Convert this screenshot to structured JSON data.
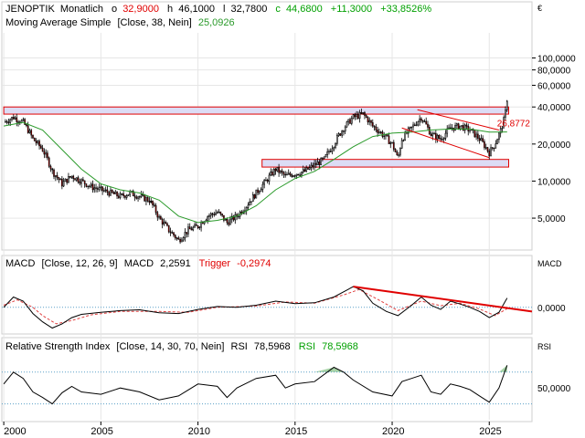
{
  "header": {
    "symbol": "JENOPTIK",
    "interval": "Monatlich",
    "open_label": "o",
    "open": "32,9000",
    "high_label": "h",
    "high": "46,1000",
    "low_label": "l",
    "low": "32,7800",
    "close_label": "c",
    "close": "44,6800",
    "change": "+11,3000",
    "change_pct": "+33,8526%",
    "currency": "€",
    "ma_label": "Moving Average Simple",
    "ma_params": "[Close, 38, Nein]",
    "ma_value": "25,0926",
    "last_ma_marker": "26,8772"
  },
  "macd": {
    "label": "MACD",
    "params": "[Close, 12, 26, 9]",
    "value_label": "MACD",
    "value": "2,2591",
    "trigger_label": "Trigger",
    "trigger_value": "-0,2974",
    "axis_label": "MACD",
    "zero_tick": "0,0000"
  },
  "rsi": {
    "label": "Relative Strength Index",
    "params": "[Close, 14, 30, 70, Nein]",
    "value_label": "RSI",
    "value": "78,5968",
    "value2_label": "RSI",
    "value2": "78,5968",
    "axis_label": "RSI",
    "mid_tick": "50,0000"
  },
  "colors": {
    "candle_up": "#ffffff",
    "candle_down": "#cc0000",
    "ma_line": "#2a9a2a",
    "trend_line": "#e00000",
    "band_fill": "#dcdcf5",
    "grid": "#e6e6e6",
    "macd_line": "#000000",
    "macd_trigger": "#e04040",
    "rsi_fill": "#7fbf7f",
    "positive": "#00a000",
    "negative": "#e00000"
  },
  "chart_data": [
    {
      "type": "candlestick",
      "title": "JENOPTIK Monatlich",
      "scale": "log",
      "yticks": [
        "5,0000",
        "10,0000",
        "20,0000",
        "40,0000",
        "60,0000",
        "80,0000",
        "100,0000"
      ],
      "ytick_values": [
        5,
        10,
        20,
        40,
        60,
        80,
        100
      ],
      "xticks": [
        "2000",
        "2005",
        "2010",
        "2015",
        "2020",
        "2025"
      ],
      "xtick_values": [
        2000,
        2005,
        2010,
        2015,
        2020,
        2025
      ],
      "xlim": [
        1999.9,
        2027.2
      ],
      "ylim": [
        2.85,
        160
      ],
      "close_points": [
        {
          "x": 2000.0,
          "y": 30
        },
        {
          "x": 2000.5,
          "y": 33
        },
        {
          "x": 2001.0,
          "y": 30
        },
        {
          "x": 2001.5,
          "y": 22
        },
        {
          "x": 2002.0,
          "y": 18
        },
        {
          "x": 2002.5,
          "y": 12
        },
        {
          "x": 2003.0,
          "y": 9.5
        },
        {
          "x": 2003.5,
          "y": 11
        },
        {
          "x": 2004.0,
          "y": 10
        },
        {
          "x": 2004.5,
          "y": 9
        },
        {
          "x": 2005.0,
          "y": 8.5
        },
        {
          "x": 2005.5,
          "y": 8
        },
        {
          "x": 2006.0,
          "y": 7.5
        },
        {
          "x": 2006.5,
          "y": 8
        },
        {
          "x": 2007.0,
          "y": 7.5
        },
        {
          "x": 2007.5,
          "y": 7
        },
        {
          "x": 2008.0,
          "y": 5
        },
        {
          "x": 2008.5,
          "y": 4
        },
        {
          "x": 2009.0,
          "y": 3.3
        },
        {
          "x": 2009.5,
          "y": 4
        },
        {
          "x": 2010.0,
          "y": 4.3
        },
        {
          "x": 2010.5,
          "y": 5.2
        },
        {
          "x": 2011.0,
          "y": 5.6
        },
        {
          "x": 2011.5,
          "y": 4.6
        },
        {
          "x": 2012.0,
          "y": 5.2
        },
        {
          "x": 2012.5,
          "y": 6.3
        },
        {
          "x": 2013.0,
          "y": 8
        },
        {
          "x": 2013.5,
          "y": 10
        },
        {
          "x": 2014.0,
          "y": 12.5
        },
        {
          "x": 2014.5,
          "y": 11
        },
        {
          "x": 2015.0,
          "y": 11.5
        },
        {
          "x": 2015.5,
          "y": 12
        },
        {
          "x": 2016.0,
          "y": 13.5
        },
        {
          "x": 2016.5,
          "y": 15
        },
        {
          "x": 2017.0,
          "y": 20
        },
        {
          "x": 2017.5,
          "y": 27
        },
        {
          "x": 2018.0,
          "y": 33
        },
        {
          "x": 2018.5,
          "y": 35
        },
        {
          "x": 2019.0,
          "y": 28
        },
        {
          "x": 2019.5,
          "y": 24
        },
        {
          "x": 2020.0,
          "y": 20
        },
        {
          "x": 2020.3,
          "y": 15
        },
        {
          "x": 2020.5,
          "y": 22
        },
        {
          "x": 2021.0,
          "y": 27
        },
        {
          "x": 2021.5,
          "y": 33
        },
        {
          "x": 2022.0,
          "y": 24
        },
        {
          "x": 2022.5,
          "y": 22
        },
        {
          "x": 2023.0,
          "y": 27
        },
        {
          "x": 2023.5,
          "y": 28
        },
        {
          "x": 2024.0,
          "y": 26
        },
        {
          "x": 2024.5,
          "y": 22
        },
        {
          "x": 2025.0,
          "y": 17
        },
        {
          "x": 2025.3,
          "y": 20
        },
        {
          "x": 2025.6,
          "y": 26
        },
        {
          "x": 2025.8,
          "y": 33
        },
        {
          "x": 2025.92,
          "y": 44.68
        }
      ],
      "ma_points": [
        {
          "x": 2000.0,
          "y": 28
        },
        {
          "x": 2001.0,
          "y": 30
        },
        {
          "x": 2002.0,
          "y": 26
        },
        {
          "x": 2003.0,
          "y": 18
        },
        {
          "x": 2004.0,
          "y": 12.5
        },
        {
          "x": 2005.0,
          "y": 9.5
        },
        {
          "x": 2006.0,
          "y": 8.5
        },
        {
          "x": 2007.0,
          "y": 8
        },
        {
          "x": 2008.0,
          "y": 7
        },
        {
          "x": 2009.0,
          "y": 5.2
        },
        {
          "x": 2010.0,
          "y": 4.6
        },
        {
          "x": 2011.0,
          "y": 4.8
        },
        {
          "x": 2012.0,
          "y": 5.2
        },
        {
          "x": 2013.0,
          "y": 6.3
        },
        {
          "x": 2014.0,
          "y": 8.5
        },
        {
          "x": 2015.0,
          "y": 10.5
        },
        {
          "x": 2016.0,
          "y": 12
        },
        {
          "x": 2017.0,
          "y": 15
        },
        {
          "x": 2018.0,
          "y": 19
        },
        {
          "x": 2019.0,
          "y": 23
        },
        {
          "x": 2020.0,
          "y": 24.5
        },
        {
          "x": 2021.0,
          "y": 25
        },
        {
          "x": 2022.0,
          "y": 26
        },
        {
          "x": 2023.0,
          "y": 26.5
        },
        {
          "x": 2024.0,
          "y": 26.5
        },
        {
          "x": 2025.0,
          "y": 25
        },
        {
          "x": 2025.92,
          "y": 25.09
        }
      ],
      "resistance_band": {
        "x_from": 2000.0,
        "x_to": 2026.0,
        "y_low": 35,
        "y_high": 40
      },
      "support_band": {
        "x_from": 2013.3,
        "x_to": 2026.0,
        "y_low": 13,
        "y_high": 15
      },
      "channel_lines": [
        {
          "x1": 2021.3,
          "y1": 38,
          "x2": 2025.5,
          "y2": 26
        },
        {
          "x1": 2020.5,
          "y1": 27,
          "x2": 2025.0,
          "y2": 15.5
        }
      ]
    },
    {
      "type": "line",
      "title": "MACD [Close, 12, 26, 9]",
      "yticks": [
        "0,0000"
      ],
      "ylim": [
        -6,
        9
      ],
      "macd_points": [
        {
          "x": 2000.0,
          "y": 0
        },
        {
          "x": 2000.5,
          "y": 2.5
        },
        {
          "x": 2001.0,
          "y": 1.5
        },
        {
          "x": 2001.5,
          "y": -1.5
        },
        {
          "x": 2002.0,
          "y": -3.5
        },
        {
          "x": 2002.5,
          "y": -5
        },
        {
          "x": 2003.0,
          "y": -4
        },
        {
          "x": 2003.5,
          "y": -2.5
        },
        {
          "x": 2004.0,
          "y": -1.7
        },
        {
          "x": 2005.0,
          "y": -1.2
        },
        {
          "x": 2006.0,
          "y": -0.8
        },
        {
          "x": 2007.0,
          "y": -0.6
        },
        {
          "x": 2008.0,
          "y": -1.3
        },
        {
          "x": 2009.0,
          "y": -1.5
        },
        {
          "x": 2010.0,
          "y": -0.5
        },
        {
          "x": 2011.0,
          "y": 0.2
        },
        {
          "x": 2012.0,
          "y": 0
        },
        {
          "x": 2013.0,
          "y": 0.5
        },
        {
          "x": 2014.0,
          "y": 1.5
        },
        {
          "x": 2015.0,
          "y": 0.9
        },
        {
          "x": 2016.0,
          "y": 1.1
        },
        {
          "x": 2017.0,
          "y": 2.5
        },
        {
          "x": 2018.0,
          "y": 5
        },
        {
          "x": 2018.5,
          "y": 4
        },
        {
          "x": 2019.0,
          "y": 1
        },
        {
          "x": 2019.7,
          "y": -1
        },
        {
          "x": 2020.3,
          "y": -2
        },
        {
          "x": 2021.0,
          "y": 0.5
        },
        {
          "x": 2021.5,
          "y": 2.5
        },
        {
          "x": 2022.0,
          "y": 0.5
        },
        {
          "x": 2022.5,
          "y": -0.5
        },
        {
          "x": 2023.0,
          "y": 1.5
        },
        {
          "x": 2023.5,
          "y": 0.8
        },
        {
          "x": 2024.0,
          "y": 0
        },
        {
          "x": 2024.5,
          "y": -1
        },
        {
          "x": 2025.0,
          "y": -2.5
        },
        {
          "x": 2025.5,
          "y": -1.2
        },
        {
          "x": 2025.92,
          "y": 2.26
        }
      ],
      "trigger_points": [
        {
          "x": 2000.0,
          "y": 0.5
        },
        {
          "x": 2000.7,
          "y": 1.8
        },
        {
          "x": 2001.5,
          "y": 0
        },
        {
          "x": 2002.0,
          "y": -2
        },
        {
          "x": 2002.7,
          "y": -4
        },
        {
          "x": 2003.5,
          "y": -3.2
        },
        {
          "x": 2004.5,
          "y": -1.8
        },
        {
          "x": 2006.0,
          "y": -1
        },
        {
          "x": 2008.0,
          "y": -1
        },
        {
          "x": 2009.5,
          "y": -1.2
        },
        {
          "x": 2011.0,
          "y": 0
        },
        {
          "x": 2013.0,
          "y": 0.3
        },
        {
          "x": 2014.5,
          "y": 1.3
        },
        {
          "x": 2016.0,
          "y": 1
        },
        {
          "x": 2017.5,
          "y": 3
        },
        {
          "x": 2018.3,
          "y": 4.3
        },
        {
          "x": 2019.3,
          "y": 1.8
        },
        {
          "x": 2020.3,
          "y": -0.8
        },
        {
          "x": 2021.5,
          "y": 1.5
        },
        {
          "x": 2022.5,
          "y": 0.4
        },
        {
          "x": 2023.5,
          "y": 1
        },
        {
          "x": 2024.5,
          "y": -0.4
        },
        {
          "x": 2025.3,
          "y": -2
        },
        {
          "x": 2025.92,
          "y": -0.3
        }
      ],
      "trend_line": {
        "x1": 2018.0,
        "y1": 5,
        "x2": 2027.2,
        "y2": -1
      }
    },
    {
      "type": "line",
      "title": "Relative Strength Index [Close, 14, 30, 70, Nein]",
      "yticks": [
        "50,0000"
      ],
      "ylim": [
        10,
        95
      ],
      "levels": [
        30,
        70
      ],
      "rsi_points": [
        {
          "x": 2000.0,
          "y": 55
        },
        {
          "x": 2000.5,
          "y": 70
        },
        {
          "x": 2001.0,
          "y": 62
        },
        {
          "x": 2001.5,
          "y": 45
        },
        {
          "x": 2002.0,
          "y": 38
        },
        {
          "x": 2002.5,
          "y": 30
        },
        {
          "x": 2003.0,
          "y": 44
        },
        {
          "x": 2003.5,
          "y": 52
        },
        {
          "x": 2004.0,
          "y": 45
        },
        {
          "x": 2005.0,
          "y": 42
        },
        {
          "x": 2006.0,
          "y": 50
        },
        {
          "x": 2007.0,
          "y": 45
        },
        {
          "x": 2008.0,
          "y": 35
        },
        {
          "x": 2009.0,
          "y": 40
        },
        {
          "x": 2010.0,
          "y": 55
        },
        {
          "x": 2011.0,
          "y": 52
        },
        {
          "x": 2011.5,
          "y": 38
        },
        {
          "x": 2012.0,
          "y": 50
        },
        {
          "x": 2013.0,
          "y": 62
        },
        {
          "x": 2014.0,
          "y": 66
        },
        {
          "x": 2014.5,
          "y": 50
        },
        {
          "x": 2015.0,
          "y": 55
        },
        {
          "x": 2016.0,
          "y": 58
        },
        {
          "x": 2017.0,
          "y": 76
        },
        {
          "x": 2017.5,
          "y": 70
        },
        {
          "x": 2018.0,
          "y": 60
        },
        {
          "x": 2019.0,
          "y": 45
        },
        {
          "x": 2020.0,
          "y": 40
        },
        {
          "x": 2020.5,
          "y": 58
        },
        {
          "x": 2021.0,
          "y": 62
        },
        {
          "x": 2021.5,
          "y": 66
        },
        {
          "x": 2022.0,
          "y": 45
        },
        {
          "x": 2022.5,
          "y": 42
        },
        {
          "x": 2023.0,
          "y": 55
        },
        {
          "x": 2023.5,
          "y": 52
        },
        {
          "x": 2024.0,
          "y": 48
        },
        {
          "x": 2024.5,
          "y": 40
        },
        {
          "x": 2025.0,
          "y": 32
        },
        {
          "x": 2025.5,
          "y": 50
        },
        {
          "x": 2025.92,
          "y": 78.6
        }
      ]
    }
  ]
}
